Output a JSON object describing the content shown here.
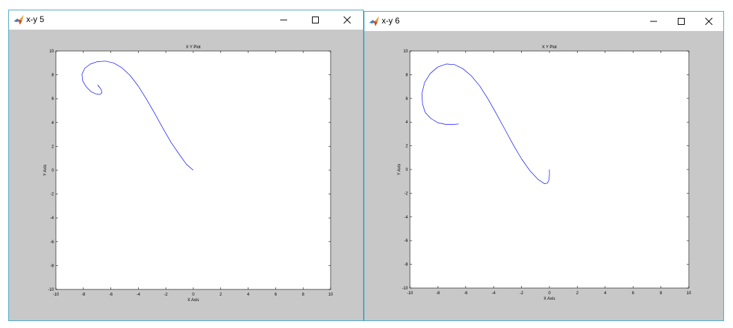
{
  "windows": [
    {
      "title": "x-y 5",
      "icon": "matlab-icon",
      "controls": [
        "minimize-icon",
        "maximize-icon",
        "close-icon"
      ],
      "chart_data": {
        "type": "line",
        "title": "X Y Plot",
        "xlabel": "X Axis",
        "ylabel": "Y Axis",
        "xlim": [
          -10,
          10
        ],
        "ylim": [
          -10,
          10
        ],
        "xticks": [
          "-10",
          "-8",
          "-6",
          "-4",
          "-2",
          "0",
          "2",
          "4",
          "6",
          "8",
          "10"
        ],
        "yticks": [
          "-10",
          "-8",
          "-6",
          "-4",
          "-2",
          "0",
          "2",
          "4",
          "6",
          "8",
          "10"
        ],
        "grid": false,
        "line_color": "#0000ff",
        "series": [
          {
            "x": [
              0,
              -0.5,
              -1,
              -1.6,
              -2.2,
              -2.8,
              -3.4,
              -4.0,
              -4.6,
              -5.2,
              -5.8,
              -6.4,
              -7.0,
              -7.5,
              -7.9,
              -8.1,
              -8.05,
              -7.8,
              -7.45,
              -7.1,
              -6.8,
              -6.65,
              -6.7,
              -6.85,
              -6.95,
              -6.9,
              -6.78
            ],
            "y": [
              0,
              0.5,
              1.3,
              2.3,
              3.5,
              4.75,
              5.95,
              7.05,
              7.95,
              8.6,
              9.0,
              9.15,
              9.1,
              8.9,
              8.55,
              8.05,
              7.5,
              7.0,
              6.6,
              6.4,
              6.35,
              6.5,
              6.75,
              7.0,
              7.15,
              7.05,
              6.9
            ]
          }
        ]
      }
    },
    {
      "title": "x-y 6",
      "icon": "matlab-icon",
      "controls": [
        "minimize-icon",
        "maximize-icon",
        "close-icon"
      ],
      "chart_data": {
        "type": "line",
        "title": "X Y Plot",
        "xlabel": "X Axis",
        "ylabel": "Y Axis",
        "xlim": [
          -10,
          10
        ],
        "ylim": [
          -10,
          10
        ],
        "xticks": [
          "-10",
          "-8",
          "-6",
          "-4",
          "-2",
          "0",
          "2",
          "4",
          "6",
          "8",
          "10"
        ],
        "yticks": [
          "-10",
          "-8",
          "-6",
          "-4",
          "-2",
          "0",
          "2",
          "4",
          "6",
          "8",
          "10"
        ],
        "grid": false,
        "line_color": "#0000ff",
        "series": [
          {
            "x": [
              0,
              0,
              -0.05,
              -0.15,
              -0.35,
              -0.8,
              -1.4,
              -2.0,
              -2.6,
              -3.2,
              -3.8,
              -4.4,
              -5.0,
              -5.6,
              -6.2,
              -6.8,
              -7.4,
              -8.0,
              -8.55,
              -8.95,
              -9.15,
              -9.1,
              -8.9,
              -8.5,
              -8.0,
              -7.4,
              -6.9,
              -6.5
            ],
            "y": [
              0,
              -0.5,
              -0.95,
              -1.15,
              -1.2,
              -0.85,
              -0.1,
              0.9,
              2.1,
              3.4,
              4.7,
              5.95,
              7.05,
              7.9,
              8.5,
              8.85,
              8.9,
              8.65,
              8.1,
              7.35,
              6.4,
              5.5,
              4.8,
              4.3,
              3.95,
              3.8,
              3.8,
              3.85
            ]
          }
        ]
      }
    }
  ]
}
